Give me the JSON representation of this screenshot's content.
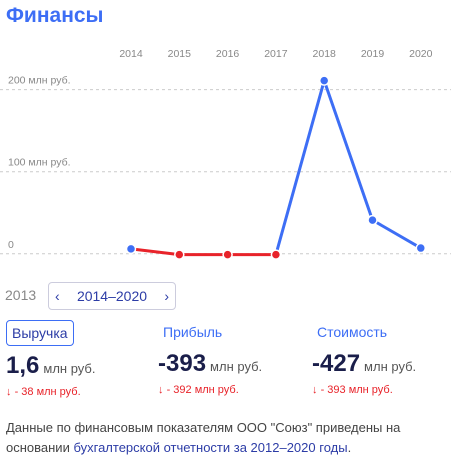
{
  "header": {
    "title": "Финансы"
  },
  "chart_data": {
    "type": "line",
    "categories": [
      "2014",
      "2015",
      "2016",
      "2017",
      "2018",
      "2019",
      "2020"
    ],
    "series": [
      {
        "name": "Выручка",
        "color": "#3d6ef5",
        "values": [
          6,
          -1,
          -1,
          -1,
          211,
          41,
          7
        ]
      }
    ],
    "negative_color": "#e8232a",
    "ylim": [
      -10,
      230
    ],
    "yticks": [
      0,
      {
        "value": 100,
        "label": "100 млн руб."
      },
      {
        "value": 200,
        "label": "200 млн руб."
      }
    ],
    "grid": true
  },
  "nav": {
    "prev": "2013",
    "range": "2014–2020"
  },
  "metrics": [
    {
      "label": "Выручка",
      "value": "1,6",
      "unit": "млн руб.",
      "change": "- 38 млн руб."
    },
    {
      "label": "Прибыль",
      "value": "-393",
      "unit": "млн руб.",
      "change": "- 392 млн руб."
    },
    {
      "label": "Стоимость",
      "value": "-427",
      "unit": "млн руб.",
      "change": "- 393 млн руб."
    }
  ],
  "footer": {
    "text": "Данные по финансовым показателям ООО \"Союз\" приведены на основании ",
    "link": "бухгалтерской отчетности за 2012–2020 годы",
    "end": "."
  }
}
